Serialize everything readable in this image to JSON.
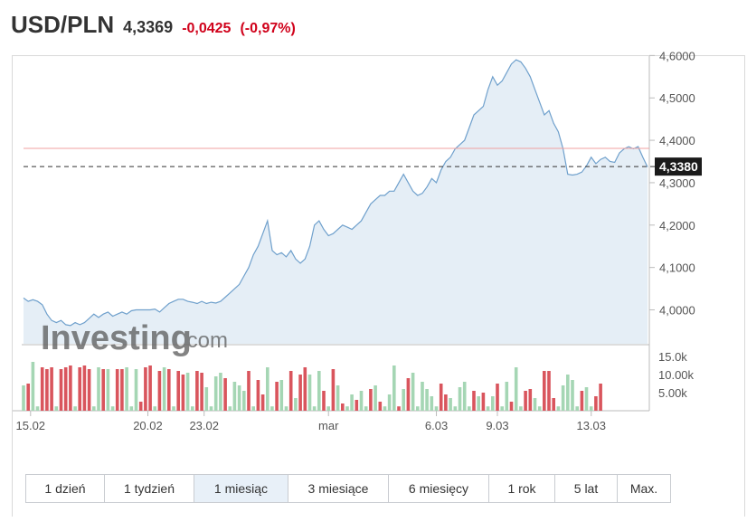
{
  "header": {
    "pair": "USD/PLN",
    "price": "4,3369",
    "change": "-0,0425",
    "change_pct": "(-0,97%)"
  },
  "watermark": {
    "brand": "Investing",
    "suffix": ".com"
  },
  "current_label": "4,3380",
  "tabs": [
    {
      "label": "1 dzień"
    },
    {
      "label": "1 tydzień"
    },
    {
      "label": "1 miesiąc",
      "active": true
    },
    {
      "label": "3 miesiące"
    },
    {
      "label": "6 miesięcy"
    },
    {
      "label": "1 rok"
    },
    {
      "label": "5 lat"
    },
    {
      "label": "Max."
    }
  ],
  "colors": {
    "line": "#6fa0cc",
    "area": "#e5eef6",
    "up": "#a5d6b4",
    "down": "#d9555d",
    "ref": "#f0a0a0",
    "change": "#d0021b"
  },
  "chart_data": {
    "type": "line",
    "price_axis": {
      "ticks": [
        "4,6000",
        "4,5000",
        "4,4000",
        "4,3000",
        "4,2000",
        "4,1000",
        "4,0000"
      ],
      "tick_values": [
        4.6,
        4.5,
        4.4,
        4.3,
        4.2,
        4.1,
        4.0
      ],
      "range": [
        3.92,
        4.62
      ]
    },
    "volume_axis": {
      "ticks": [
        "15.0k",
        "10.00k",
        "5.00k"
      ],
      "tick_values": [
        15000,
        10000,
        5000
      ],
      "range": [
        0,
        18000
      ]
    },
    "x_ticks": [
      {
        "label": "15.02",
        "index": 1.5
      },
      {
        "label": "20.02",
        "index": 26.5
      },
      {
        "label": "23.02",
        "index": 38.5
      },
      {
        "label": "mar",
        "index": 65
      },
      {
        "label": "6.03",
        "index": 88
      },
      {
        "label": "9.03",
        "index": 101
      },
      {
        "label": "13.03",
        "index": 121
      }
    ],
    "reference_price": 4.381,
    "current_price": 4.338,
    "series": [
      {
        "type": "line",
        "values": [
          4.028,
          4.02,
          4.024,
          4.02,
          4.012,
          3.99,
          3.975,
          3.97,
          3.975,
          3.965,
          3.963,
          3.97,
          3.965,
          3.97,
          3.98,
          3.99,
          3.982,
          3.99,
          3.995,
          3.985,
          3.99,
          3.995,
          3.99,
          3.998,
          4.0,
          4.0,
          4.0,
          4.0,
          4.002,
          3.995,
          4.005,
          4.015,
          4.02,
          4.025,
          4.025,
          4.02,
          4.018,
          4.015,
          4.02,
          4.015,
          4.018,
          4.016,
          4.02,
          4.03,
          4.04,
          4.05,
          4.06,
          4.08,
          4.1,
          4.13,
          4.15,
          4.18,
          4.21,
          4.14,
          4.13,
          4.135,
          4.125,
          4.14,
          4.12,
          4.11,
          4.12,
          4.15,
          4.2,
          4.21,
          4.19,
          4.175,
          4.18,
          4.19,
          4.2,
          4.195,
          4.19,
          4.2,
          4.21,
          4.23,
          4.25,
          4.26,
          4.27,
          4.27,
          4.28,
          4.28,
          4.3,
          4.32,
          4.3,
          4.28,
          4.27,
          4.275,
          4.29,
          4.31,
          4.3,
          4.33,
          4.35,
          4.36,
          4.38,
          4.39,
          4.4,
          4.43,
          4.46,
          4.47,
          4.48,
          4.52,
          4.55,
          4.53,
          4.54,
          4.56,
          4.58,
          4.59,
          4.585,
          4.57,
          4.55,
          4.52,
          4.49,
          4.46,
          4.47,
          4.44,
          4.42,
          4.38,
          4.32,
          4.318,
          4.32,
          4.325,
          4.34,
          4.36,
          4.345,
          4.355,
          4.36,
          4.35,
          4.348,
          4.37,
          4.38,
          4.385,
          4.38,
          4.385,
          4.36,
          4.337
        ]
      },
      {
        "type": "bar",
        "name": "",
        "values": [
          7000,
          7500,
          13500,
          1200,
          12000,
          11500,
          12000,
          1200,
          11500,
          12000,
          12500,
          1200,
          12000,
          12500,
          11500,
          1200,
          12000,
          11500,
          11500,
          1200,
          11500,
          11500,
          12000,
          1200,
          11500,
          2500,
          12000,
          12500,
          1200,
          11000,
          12000,
          11500,
          1200,
          11000,
          10000,
          10500,
          1200,
          11000,
          10500,
          6500,
          1200,
          9500,
          10500,
          9000,
          1200,
          8000,
          7000,
          5500,
          11000,
          1200,
          8500,
          4500,
          12000,
          1200,
          8000,
          8500,
          1200,
          11000,
          3500,
          10000,
          12000,
          10000,
          1200,
          11000,
          5500,
          1200,
          11500,
          7000,
          2000,
          1200,
          4500,
          3000,
          5500,
          1200,
          6000,
          7000,
          2500,
          1200,
          4500,
          12500,
          1200,
          6000,
          9000,
          10500,
          1200,
          8000,
          6000,
          4000,
          1200,
          7500,
          4500,
          3500,
          1200,
          6500,
          8000,
          1200,
          5500,
          4000,
          5000,
          1200,
          4000,
          7500,
          1200,
          8000,
          2500,
          12000,
          1200,
          5500,
          6000,
          3500,
          1200,
          11000,
          11000,
          3500,
          1200,
          7000,
          10000,
          8500,
          1200,
          5500,
          6500,
          1200,
          4000,
          7500
        ],
        "directions": [
          "up",
          "down",
          "up",
          "up",
          "down",
          "down",
          "down",
          "up",
          "down",
          "down",
          "down",
          "up",
          "down",
          "down",
          "down",
          "up",
          "up",
          "down",
          "up",
          "up",
          "down",
          "down",
          "up",
          "up",
          "up",
          "down",
          "down",
          "down",
          "up",
          "down",
          "up",
          "down",
          "up",
          "down",
          "down",
          "up",
          "up",
          "down",
          "down",
          "up",
          "up",
          "up",
          "up",
          "down",
          "up",
          "up",
          "up",
          "up",
          "down",
          "up",
          "down",
          "down",
          "up",
          "up",
          "down",
          "up",
          "up",
          "down",
          "up",
          "down",
          "down",
          "up",
          "up",
          "up",
          "down",
          "up",
          "down",
          "up",
          "down",
          "up",
          "up",
          "down",
          "up",
          "up",
          "down",
          "up",
          "down",
          "up",
          "up",
          "up",
          "down",
          "up",
          "down",
          "up",
          "up",
          "up",
          "up",
          "up",
          "up",
          "down",
          "down",
          "up",
          "up",
          "up",
          "up",
          "up",
          "down",
          "up",
          "down",
          "up",
          "up",
          "down",
          "up",
          "up",
          "down",
          "up",
          "up",
          "down",
          "down",
          "up",
          "up",
          "down",
          "down",
          "down",
          "up",
          "up",
          "up",
          "up",
          "up",
          "down",
          "up",
          "up",
          "down",
          "down"
        ]
      }
    ]
  }
}
